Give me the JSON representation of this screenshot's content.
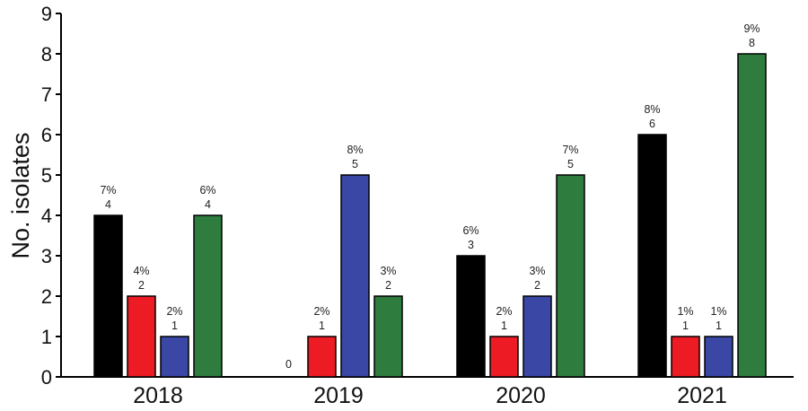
{
  "chart_data": {
    "type": "bar",
    "title": "",
    "xlabel": "",
    "ylabel": "No. isolates",
    "ylim": [
      0,
      9
    ],
    "yticks": [
      "0",
      "1",
      "2",
      "3",
      "4",
      "5",
      "6",
      "7",
      "8",
      "9"
    ],
    "categories": [
      "2018",
      "2019",
      "2020",
      "2021"
    ],
    "grid": false,
    "legend": "none",
    "series": [
      {
        "color": "#000000",
        "values": [
          4,
          0,
          3,
          6
        ],
        "value_labels": [
          "4",
          "0",
          "3",
          "6"
        ],
        "pct_labels": [
          "7%",
          "",
          "6%",
          "8%"
        ]
      },
      {
        "color": "#ed1c24",
        "values": [
          2,
          1,
          1,
          1
        ],
        "value_labels": [
          "2",
          "1",
          "1",
          "1"
        ],
        "pct_labels": [
          "4%",
          "2%",
          "2%",
          "1%"
        ]
      },
      {
        "color": "#3a47a5",
        "values": [
          1,
          5,
          2,
          1
        ],
        "value_labels": [
          "1",
          "5",
          "2",
          "1"
        ],
        "pct_labels": [
          "2%",
          "8%",
          "3%",
          "1%"
        ]
      },
      {
        "color": "#2e7d3e",
        "values": [
          4,
          2,
          5,
          8
        ],
        "value_labels": [
          "4",
          "2",
          "5",
          "8"
        ],
        "pct_labels": [
          "6%",
          "3%",
          "7%",
          "9%"
        ]
      }
    ]
  }
}
